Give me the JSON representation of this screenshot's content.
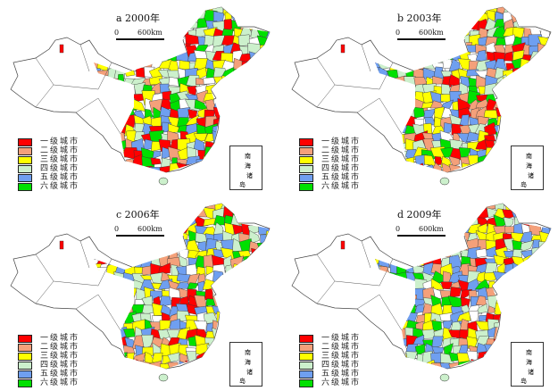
{
  "panels": [
    {
      "id": "a",
      "title": "a  2000年",
      "seed": 11
    },
    {
      "id": "b",
      "title": "b  2003年",
      "seed": 23
    },
    {
      "id": "c",
      "title": "c  2006年",
      "seed": 37
    },
    {
      "id": "d",
      "title": "d  2009年",
      "seed": 51
    }
  ],
  "scale_bar": {
    "zero": "0",
    "distance": "600km"
  },
  "legend": [
    {
      "label": "一级城市",
      "color": "#ff0000"
    },
    {
      "label": "二级城市",
      "color": "#f4a07a"
    },
    {
      "label": "三级城市",
      "color": "#ffff00"
    },
    {
      "label": "四级城市",
      "color": "#ccf0cc"
    },
    {
      "label": "五级城市",
      "color": "#6f9ff0"
    },
    {
      "label": "六级城市",
      "color": "#00e000"
    }
  ],
  "inset": {
    "chars": [
      "南",
      "海",
      "诸",
      "岛"
    ]
  }
}
